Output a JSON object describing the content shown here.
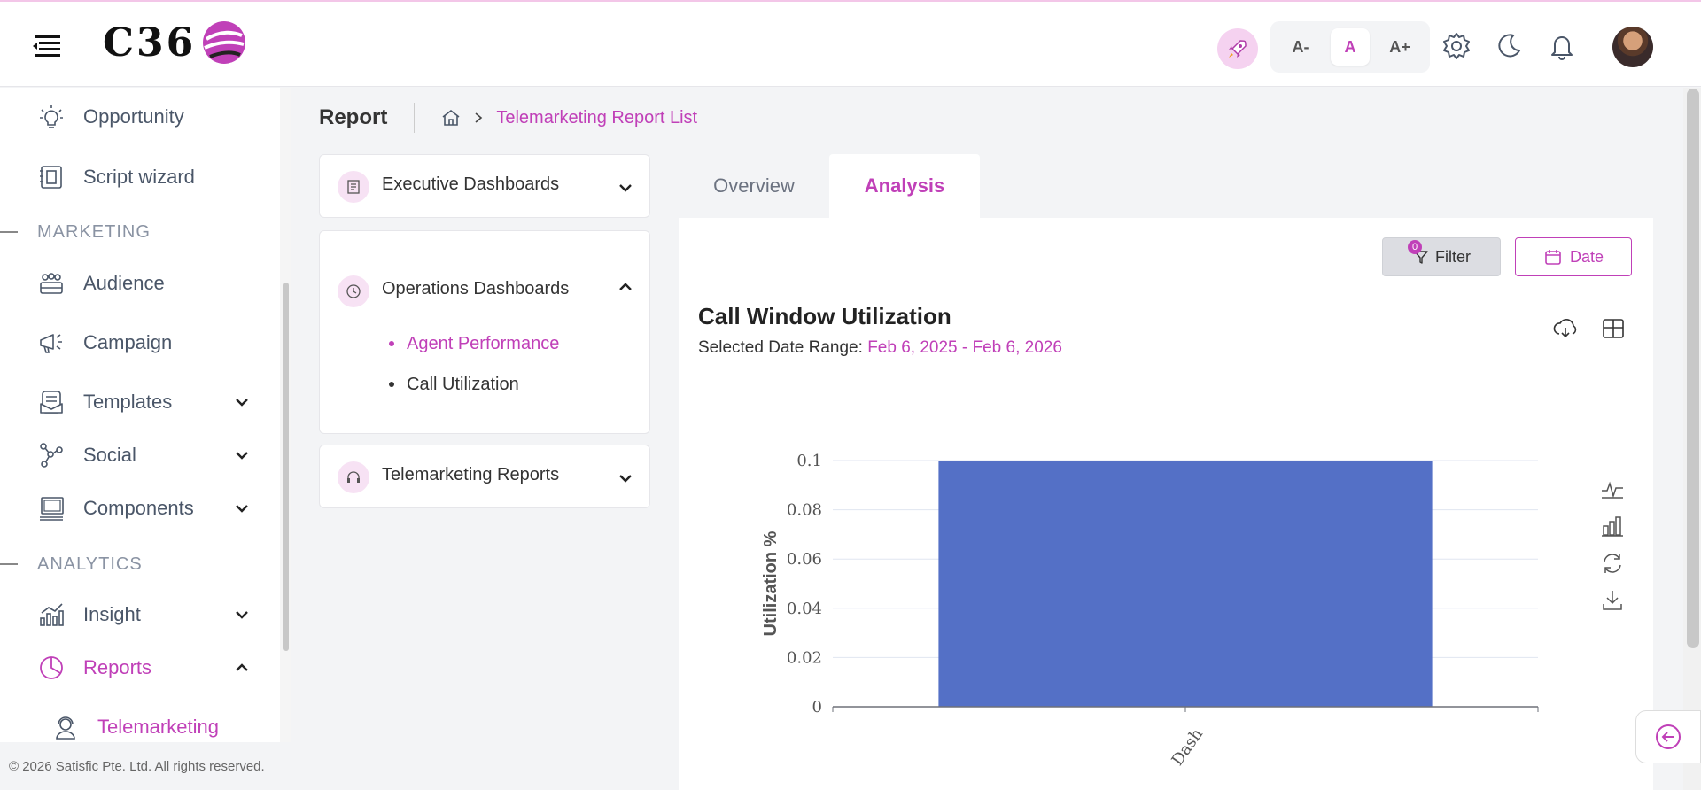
{
  "header": {
    "logo_text": "C36",
    "font_small": "A-",
    "font_normal": "A",
    "font_large": "A+"
  },
  "sidebar": {
    "items": [
      {
        "label": "Opportunity",
        "icon": "lightbulb-icon"
      },
      {
        "label": "Script wizard",
        "icon": "script-icon"
      }
    ],
    "section_marketing": "MARKETING",
    "marketing_items": [
      {
        "label": "Audience",
        "icon": "people-icon"
      },
      {
        "label": "Campaign",
        "icon": "megaphone-icon"
      },
      {
        "label": "Templates",
        "icon": "template-icon"
      },
      {
        "label": "Social",
        "icon": "share-icon"
      },
      {
        "label": "Components",
        "icon": "components-icon"
      }
    ],
    "section_analytics": "ANALYTICS",
    "analytics_items": [
      {
        "label": "Insight",
        "icon": "insight-icon"
      },
      {
        "label": "Reports",
        "icon": "pie-chart-icon"
      }
    ],
    "sub_item": "Telemarketing",
    "copyright": "© 2026 Satisfic Pte. Ltd. All rights reserved."
  },
  "breadcrumb": {
    "title": "Report",
    "link": "Telemarketing Report List"
  },
  "accordions": {
    "executive": "Executive Dashboards",
    "operations": "Operations Dashboards",
    "operations_items": [
      "Agent Performance",
      "Call Utilization"
    ],
    "telemarketing": "Telemarketing Reports"
  },
  "tabs": {
    "overview": "Overview",
    "analysis": "Analysis"
  },
  "card": {
    "filter_label": "Filter",
    "filter_count": "0",
    "date_label": "Date",
    "title": "Call Window Utilization",
    "range_label": "Selected Date Range: ",
    "range_value": "Feb 6, 2025 - Feb 6, 2026"
  },
  "colors": {
    "accent": "#c040b8",
    "bar": "#5470c6"
  },
  "chart_data": {
    "type": "bar",
    "categories": [
      "Dash"
    ],
    "values": [
      0.1
    ],
    "title": "Call Window Utilization",
    "xlabel": "",
    "ylabel": "Utilization %",
    "ylim": [
      0,
      0.1
    ],
    "yticks": [
      "0",
      "0.02",
      "0.04",
      "0.06",
      "0.08",
      "0.1"
    ],
    "grid": true
  }
}
